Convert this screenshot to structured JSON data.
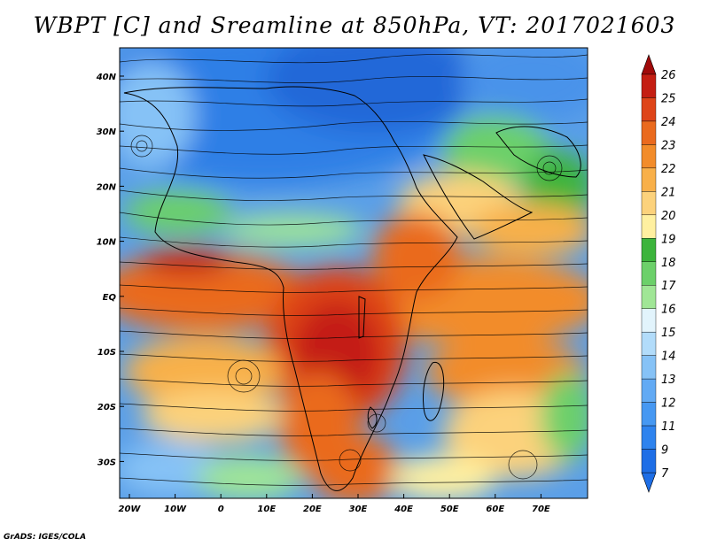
{
  "title": "WBPT [C] and Sreamline at 850hPa, VT: 2017021603",
  "credit": "GrADS: IGES/COLA",
  "lat_labels": [
    "40N",
    "30N",
    "20N",
    "10N",
    "EQ",
    "10S",
    "20S",
    "30S"
  ],
  "lon_labels": [
    "20W",
    "10W",
    "0",
    "10E",
    "20E",
    "30E",
    "40E",
    "50E",
    "60E",
    "70E"
  ],
  "colorbar": {
    "labels": [
      "7",
      "9",
      "11",
      "12",
      "13",
      "14",
      "15",
      "16",
      "17",
      "18",
      "19",
      "20",
      "21",
      "22",
      "23",
      "24",
      "25",
      "26"
    ],
    "colors": [
      "#1e6ee6",
      "#2e83ee",
      "#4698f2",
      "#62aaf4",
      "#86c2f6",
      "#b2dcfa",
      "#e2f4fc",
      "#a0e696",
      "#6cd06a",
      "#3cb43c",
      "#fff0a0",
      "#fcd27c",
      "#f8b04a",
      "#f28c2a",
      "#ea6a1e",
      "#de4418",
      "#c41e12",
      "#a00a0a"
    ]
  }
}
